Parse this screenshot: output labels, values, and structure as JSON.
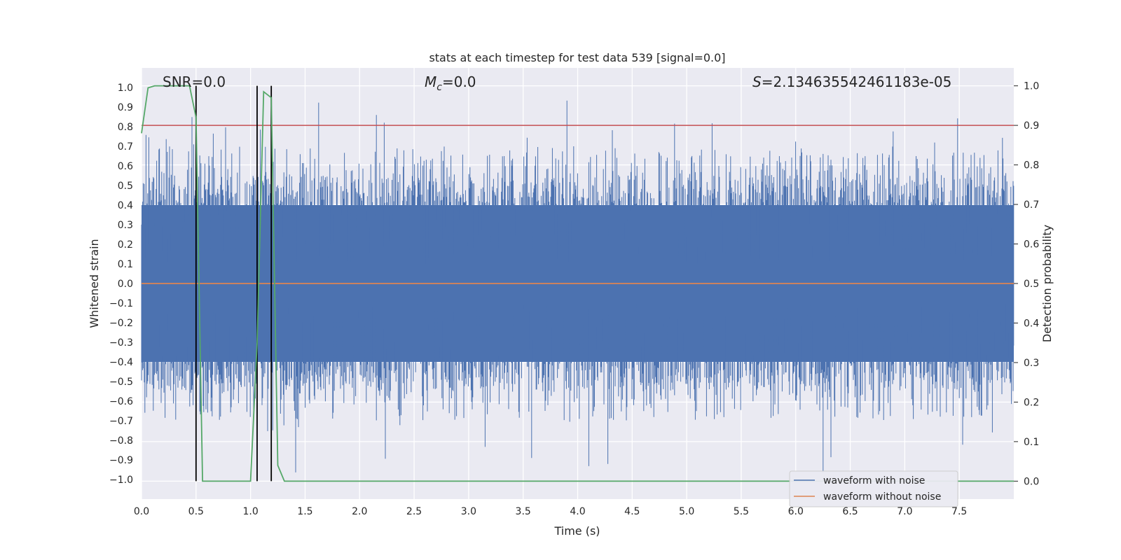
{
  "chart_data": {
    "type": "line",
    "title": "stats at each timestep for test data 539 [signal=0.0]",
    "xlabel": "Time (s)",
    "ylabel": "Whitened strain",
    "y2label": "Detection probability",
    "xlim": [
      0.0,
      8.0
    ],
    "ylim": [
      -1.1,
      1.1
    ],
    "y2lim": [
      -0.0454,
      1.0454
    ],
    "x_ticks": [
      "0.0",
      "0.5",
      "1.0",
      "1.5",
      "2.0",
      "2.5",
      "3.0",
      "3.5",
      "4.0",
      "4.5",
      "5.0",
      "5.5",
      "6.0",
      "6.5",
      "7.0",
      "7.5"
    ],
    "y_ticks": [
      "1.0",
      "0.9",
      "0.8",
      "0.7",
      "0.6",
      "0.5",
      "0.4",
      "0.3",
      "0.2",
      "0.1",
      "0.0",
      "−0.1",
      "−0.2",
      "−0.3",
      "−0.4",
      "−0.5",
      "−0.6",
      "−0.7",
      "−0.8",
      "−0.9",
      "−1.0"
    ],
    "y2_ticks": [
      "1.0",
      "0.9",
      "0.8",
      "0.7",
      "0.6",
      "0.5",
      "0.4",
      "0.3",
      "0.2",
      "0.1",
      "0.0"
    ],
    "annotations": {
      "snr": "SNR=0.0",
      "mc_symbol": "M",
      "mc_sub": "c",
      "mc_value": "=0.0",
      "s_symbol": "S",
      "s_value": "=2.134635542461183e-05"
    },
    "threshold_line": {
      "y2": 0.9,
      "color": "#c44e52"
    },
    "vertical_lines_x": [
      0.5,
      1.06,
      1.19
    ],
    "series": [
      {
        "name": "waveform with noise",
        "color": "#4c72b0",
        "kind": "noise",
        "band": 0.4,
        "peak_max": 0.95
      },
      {
        "name": "waveform without noise",
        "color": "#dd8452",
        "kind": "constant",
        "value": 0.0
      },
      {
        "color": "#55a868",
        "axis": "y2",
        "x": [
          0.0,
          0.06,
          0.12,
          0.25,
          0.44,
          0.5,
          0.56,
          0.7,
          0.9,
          1.0,
          1.06,
          1.12,
          1.19,
          1.25,
          1.31,
          1.5,
          2.0,
          4.0,
          6.0,
          8.0
        ],
        "values": [
          0.88,
          0.995,
          1.0,
          1.0,
          1.0,
          0.92,
          0.0,
          0.0,
          0.0,
          0.0,
          0.35,
          0.985,
          0.97,
          0.04,
          0.0,
          0.0,
          0.0,
          0.0,
          0.0,
          0.0
        ]
      }
    ],
    "legend": {
      "placement": "lower-right",
      "entries": [
        "waveform with noise",
        "waveform without noise"
      ]
    },
    "colors": {
      "background": "#eaeaf2",
      "grid": "#ffffff",
      "vline": "#000000"
    }
  }
}
